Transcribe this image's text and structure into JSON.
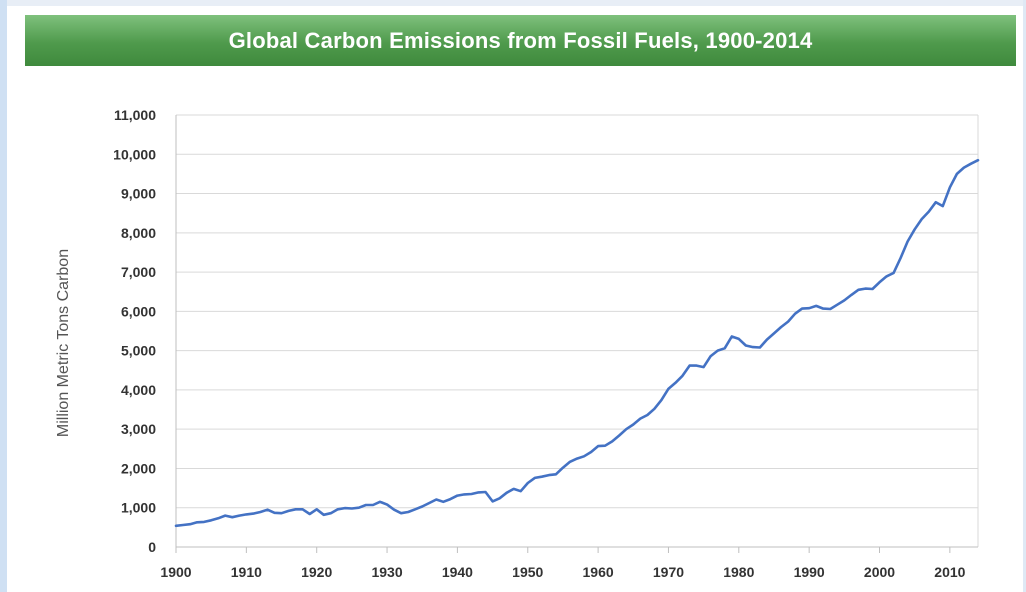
{
  "chart_data": {
    "type": "line",
    "title": "Global Carbon Emissions from Fossil Fuels, 1900-2014",
    "xlabel": "",
    "ylabel": "Million Metric Tons Carbon",
    "xlim": [
      1900,
      2014
    ],
    "ylim": [
      0,
      11000
    ],
    "x_ticks": [
      1900,
      1910,
      1920,
      1930,
      1940,
      1950,
      1960,
      1970,
      1980,
      1990,
      2000,
      2010
    ],
    "y_ticks": [
      0,
      1000,
      2000,
      3000,
      4000,
      5000,
      6000,
      7000,
      8000,
      9000,
      10000,
      11000
    ],
    "y_tick_labels": [
      "0",
      "1,000",
      "2,000",
      "3,000",
      "4,000",
      "5,000",
      "6,000",
      "7,000",
      "8,000",
      "9,000",
      "10,000",
      "11,000"
    ],
    "grid": true,
    "line_color": "#4472c4",
    "series": [
      {
        "name": "Global Carbon Emissions",
        "x": [
          1900,
          1901,
          1902,
          1903,
          1904,
          1905,
          1906,
          1907,
          1908,
          1909,
          1910,
          1911,
          1912,
          1913,
          1914,
          1915,
          1916,
          1917,
          1918,
          1919,
          1920,
          1921,
          1922,
          1923,
          1924,
          1925,
          1926,
          1927,
          1928,
          1929,
          1930,
          1931,
          1932,
          1933,
          1934,
          1935,
          1936,
          1937,
          1938,
          1939,
          1940,
          1941,
          1942,
          1943,
          1944,
          1945,
          1946,
          1947,
          1948,
          1949,
          1950,
          1951,
          1952,
          1953,
          1954,
          1955,
          1956,
          1957,
          1958,
          1959,
          1960,
          1961,
          1962,
          1963,
          1964,
          1965,
          1966,
          1967,
          1968,
          1969,
          1970,
          1971,
          1972,
          1973,
          1974,
          1975,
          1976,
          1977,
          1978,
          1979,
          1980,
          1981,
          1982,
          1983,
          1984,
          1985,
          1986,
          1987,
          1988,
          1989,
          1990,
          1991,
          1992,
          1993,
          1994,
          1995,
          1996,
          1997,
          1998,
          1999,
          2000,
          2001,
          2002,
          2003,
          2004,
          2005,
          2006,
          2007,
          2008,
          2009,
          2010,
          2011,
          2012,
          2013,
          2014
        ],
        "values": [
          540,
          560,
          580,
          630,
          640,
          680,
          730,
          800,
          760,
          800,
          830,
          850,
          890,
          950,
          870,
          860,
          920,
          960,
          960,
          840,
          960,
          820,
          860,
          960,
          990,
          980,
          1000,
          1070,
          1070,
          1150,
          1080,
          950,
          860,
          890,
          960,
          1030,
          1120,
          1210,
          1150,
          1220,
          1310,
          1340,
          1350,
          1390,
          1400,
          1160,
          1240,
          1380,
          1480,
          1420,
          1630,
          1760,
          1790,
          1830,
          1850,
          2020,
          2170,
          2250,
          2310,
          2420,
          2570,
          2580,
          2690,
          2840,
          3000,
          3120,
          3270,
          3360,
          3520,
          3740,
          4030,
          4180,
          4360,
          4620,
          4620,
          4580,
          4860,
          5000,
          5060,
          5360,
          5300,
          5130,
          5090,
          5080,
          5280,
          5440,
          5600,
          5740,
          5940,
          6070,
          6080,
          6140,
          6070,
          6060,
          6170,
          6280,
          6420,
          6550,
          6580,
          6570,
          6740,
          6890,
          6980,
          7360,
          7780,
          8090,
          8350,
          8540,
          8780,
          8680,
          9160,
          9500,
          9660,
          9760,
          9850
        ]
      }
    ]
  }
}
